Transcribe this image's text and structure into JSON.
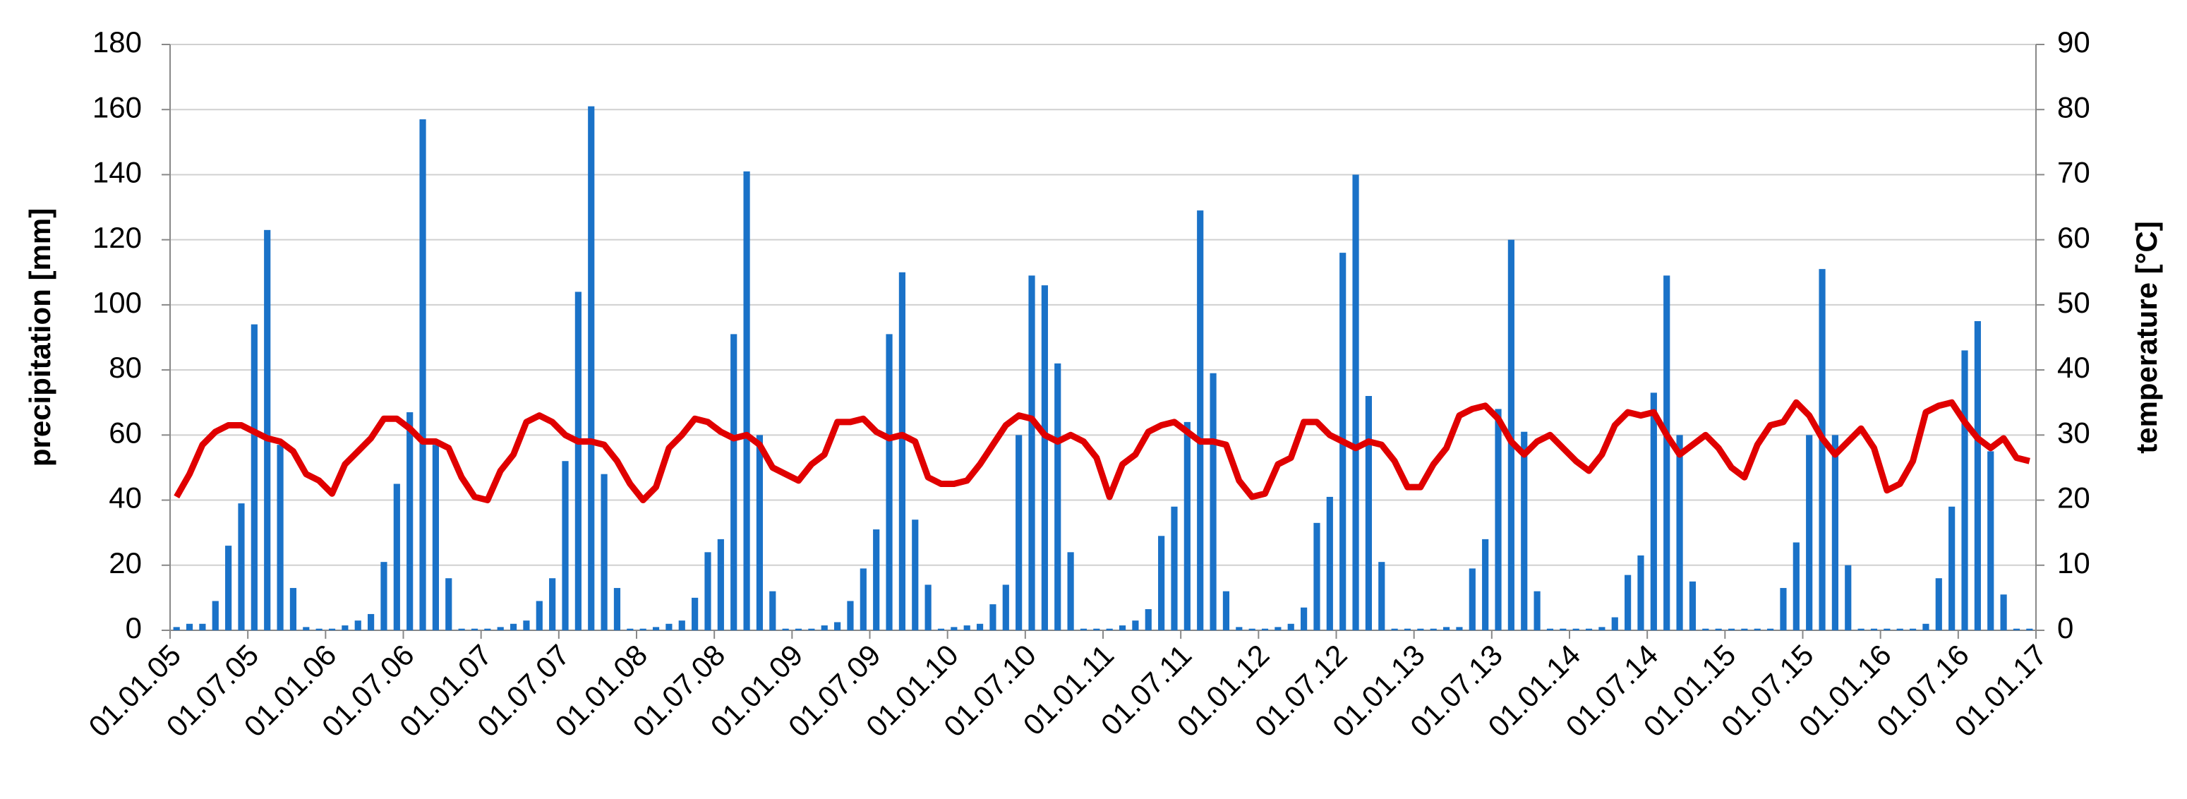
{
  "chart_data": {
    "type": "bar-line",
    "xticks": [
      "01.01.05",
      "01.07.05",
      "01.01.06",
      "01.07.06",
      "01.01.07",
      "01.07.07",
      "01.01.08",
      "01.07.08",
      "01.01.09",
      "01.07.09",
      "01.01.10",
      "01.07.10",
      "01.01.11",
      "01.07.11",
      "01.01.12",
      "01.07.12",
      "01.01.13",
      "01.07.13",
      "01.01.14",
      "01.07.14",
      "01.01.15",
      "01.07.15",
      "01.01.16",
      "01.07.16",
      "01.01.17"
    ],
    "y_label": "precipitation [mm]",
    "y2_label": "temperature [°C]",
    "ylim": [
      0,
      180
    ],
    "yticks": [
      0,
      20,
      40,
      60,
      80,
      100,
      120,
      140,
      160,
      180
    ],
    "y2lim": [
      0,
      90
    ],
    "y2ticks": [
      0,
      10,
      20,
      30,
      40,
      50,
      60,
      70,
      80,
      90
    ],
    "grid": true,
    "series": [
      {
        "name": "precipitation",
        "type": "bar",
        "color": "#1a72c8",
        "values": [
          1,
          2,
          2,
          9,
          26,
          39,
          94,
          123,
          57,
          13,
          1,
          0.5,
          0.5,
          1.5,
          3,
          5,
          21,
          45,
          67,
          157,
          57,
          16,
          0.5,
          0.5,
          0.5,
          1,
          2,
          3,
          9,
          16,
          52,
          104,
          161,
          48,
          13,
          0.5,
          0.5,
          1,
          2,
          3,
          10,
          24,
          28,
          91,
          141,
          60,
          12,
          0.5,
          0.5,
          0.5,
          1.5,
          2.5,
          9,
          19,
          31,
          91,
          110,
          34,
          14,
          0.5,
          1,
          1.5,
          2,
          8,
          14,
          60,
          109,
          106,
          82,
          24,
          0.5,
          0.5,
          0.5,
          1.5,
          3,
          6.5,
          29,
          38,
          64,
          129,
          79,
          12,
          1,
          0.5,
          0.5,
          1,
          2,
          7,
          33,
          41,
          116,
          140,
          72,
          21,
          0.5,
          0.5,
          0.5,
          0.5,
          1,
          1,
          19,
          28,
          68,
          120,
          61,
          12,
          0.5,
          0.5,
          0.5,
          0.5,
          1,
          4,
          17,
          23,
          73,
          109,
          60,
          15,
          0.5,
          0.5,
          0.5,
          0.5,
          0.5,
          0.5,
          13,
          27,
          60,
          111,
          60,
          20,
          0.5,
          0.5,
          0.5,
          0.5,
          0.5,
          2,
          16,
          38,
          86,
          95,
          55,
          11,
          0.5,
          0.5
        ]
      },
      {
        "name": "temperature",
        "type": "line",
        "axis": "y2",
        "color": "#e00000",
        "values": [
          20.5,
          24,
          28.5,
          30.5,
          31.5,
          31.5,
          30.5,
          29.5,
          29,
          27.5,
          24,
          23,
          21,
          25.5,
          27.5,
          29.5,
          32.5,
          32.5,
          31,
          29,
          29,
          28,
          23.5,
          20.5,
          20,
          24.5,
          27,
          32,
          33,
          32,
          30,
          29,
          29,
          28.5,
          26,
          22.5,
          20,
          22,
          28,
          30,
          32.5,
          32,
          30.5,
          29.5,
          30,
          28.5,
          25,
          24,
          23,
          25.5,
          27,
          32,
          32,
          32.5,
          30.5,
          29.5,
          30,
          29,
          23.5,
          22.5,
          22.5,
          23,
          25.5,
          28.5,
          31.5,
          33,
          32.5,
          30,
          29,
          30,
          29,
          26.5,
          20.5,
          25.5,
          27,
          30.5,
          31.5,
          32,
          30.5,
          29,
          29,
          28.5,
          23,
          20.5,
          21,
          25.5,
          26.5,
          32,
          32,
          30,
          29,
          28,
          29,
          28.5,
          26,
          22,
          22,
          25.5,
          28,
          33,
          34,
          34.5,
          32.5,
          29,
          27,
          29,
          30,
          28,
          26,
          24.5,
          27,
          31.5,
          33.5,
          33,
          33.5,
          30,
          27,
          28.5,
          30,
          28,
          25,
          23.5,
          28.5,
          31.5,
          32,
          35,
          33,
          29.5,
          27,
          29,
          31,
          28,
          21.5,
          22.5,
          26,
          33.5,
          34.5,
          35,
          32,
          29.5,
          28,
          29.5,
          26.5,
          26
        ]
      }
    ]
  }
}
